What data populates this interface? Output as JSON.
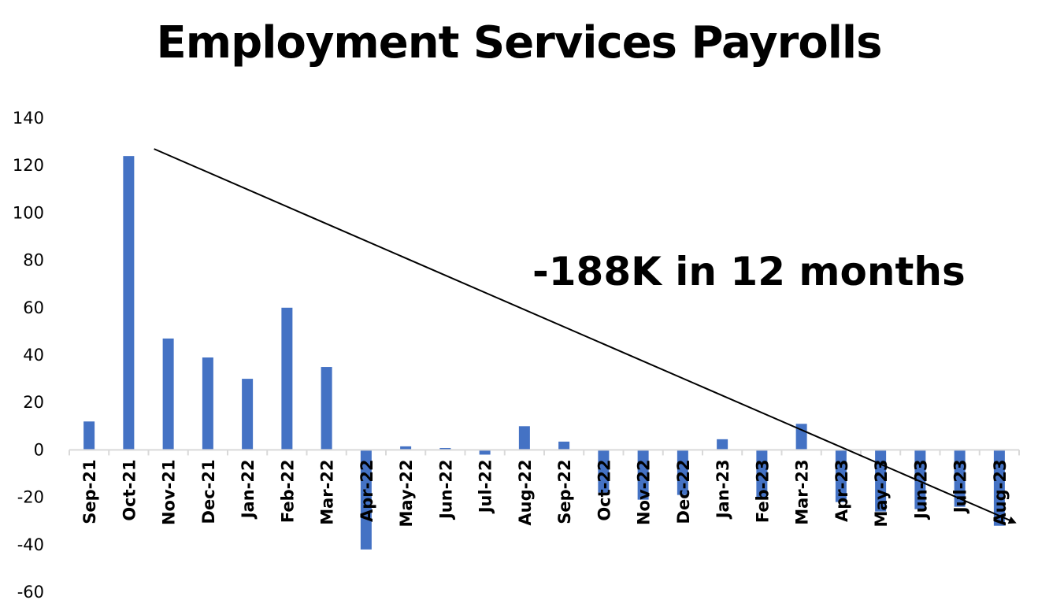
{
  "chart_data": {
    "type": "bar",
    "title": "Employment Services Payrolls",
    "xlabel": "",
    "ylabel": "",
    "categories": [
      "Sep-21",
      "Oct-21",
      "Nov-21",
      "Dec-21",
      "Jan-22",
      "Feb-22",
      "Mar-22",
      "Apr-22",
      "May-22",
      "Jun-22",
      "Jul-22",
      "Aug-22",
      "Sep-22",
      "Oct-22",
      "Nov-22",
      "Dec-22",
      "Jan-23",
      "Feb-23",
      "Mar-23",
      "Apr-23",
      "May-23",
      "Jun-23",
      "Jul-23",
      "Aug-23"
    ],
    "values": [
      12,
      124,
      47,
      39,
      30,
      60,
      35,
      -42,
      1.5,
      0.8,
      -2,
      10,
      3.5,
      -18,
      -21,
      -19,
      4.5,
      -20,
      11,
      -22,
      -26,
      -25,
      -24,
      -32
    ],
    "ylim": [
      -60,
      140
    ],
    "yticks": [
      -60,
      -40,
      -20,
      0,
      20,
      40,
      60,
      80,
      100,
      120,
      140
    ],
    "grid": false,
    "legend": "none",
    "bar_color": "#4472C4",
    "annotation": {
      "text": "-188K in 12 months",
      "arrow": {
        "from": {
          "category": "Nov-21",
          "value": 127
        },
        "to": {
          "category": "Aug-23",
          "value": -32
        }
      }
    }
  }
}
